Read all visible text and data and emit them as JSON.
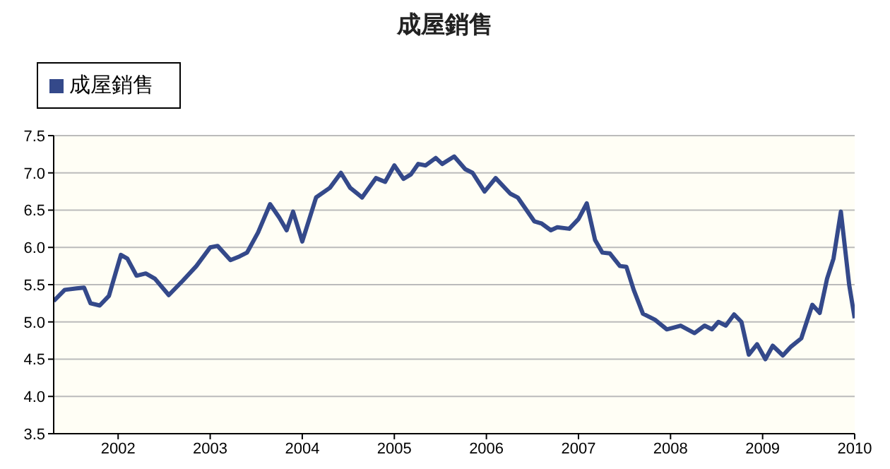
{
  "chart_data": {
    "type": "line",
    "title": "成屋銷售",
    "x": [
      2001.3,
      2001.42,
      2001.55,
      2001.63,
      2001.7,
      2001.8,
      2001.9,
      2002.03,
      2002.1,
      2002.2,
      2002.3,
      2002.4,
      2002.55,
      2002.7,
      2002.85,
      2003.0,
      2003.08,
      2003.22,
      2003.32,
      2003.4,
      2003.52,
      2003.65,
      2003.75,
      2003.83,
      2003.9,
      2004.0,
      2004.15,
      2004.3,
      2004.42,
      2004.52,
      2004.65,
      2004.8,
      2004.9,
      2005.0,
      2005.1,
      2005.18,
      2005.26,
      2005.34,
      2005.45,
      2005.52,
      2005.65,
      2005.77,
      2005.85,
      2005.98,
      2006.1,
      2006.26,
      2006.34,
      2006.52,
      2006.6,
      2006.7,
      2006.77,
      2006.9,
      2007.0,
      2007.09,
      2007.18,
      2007.26,
      2007.34,
      2007.45,
      2007.52,
      2007.6,
      2007.7,
      2007.83,
      2007.96,
      2008.11,
      2008.26,
      2008.37,
      2008.45,
      2008.52,
      2008.6,
      2008.69,
      2008.77,
      2008.85,
      2008.94,
      2009.03,
      2009.11,
      2009.22,
      2009.31,
      2009.42,
      2009.54,
      2009.62,
      2009.7,
      2009.77,
      2009.85,
      2009.94,
      2010.0
    ],
    "series": [
      {
        "name": "成屋銷售",
        "color": "#34498a",
        "values": [
          5.28,
          5.43,
          5.45,
          5.46,
          5.25,
          5.22,
          5.35,
          5.9,
          5.85,
          5.62,
          5.65,
          5.58,
          5.36,
          5.55,
          5.75,
          6.0,
          6.02,
          5.83,
          5.88,
          5.93,
          6.2,
          6.58,
          6.4,
          6.23,
          6.48,
          6.08,
          6.67,
          6.8,
          7.0,
          6.8,
          6.67,
          6.93,
          6.88,
          7.1,
          6.92,
          6.98,
          7.12,
          7.1,
          7.2,
          7.12,
          7.22,
          7.05,
          7.0,
          6.75,
          6.93,
          6.72,
          6.67,
          6.35,
          6.32,
          6.23,
          6.27,
          6.25,
          6.38,
          6.59,
          6.1,
          5.93,
          5.92,
          5.75,
          5.74,
          5.43,
          5.11,
          5.03,
          4.9,
          4.95,
          4.85,
          4.95,
          4.9,
          5.0,
          4.95,
          5.1,
          5.0,
          4.56,
          4.7,
          4.5,
          4.68,
          4.55,
          4.67,
          4.78,
          5.23,
          5.12,
          5.58,
          5.85,
          6.48,
          5.5,
          5.05
        ]
      }
    ],
    "xlim": [
      2001.3,
      2010.0
    ],
    "xticks": [
      2002,
      2003,
      2004,
      2005,
      2006,
      2007,
      2008,
      2009,
      2010
    ],
    "ylim": [
      3.5,
      7.5
    ],
    "yticks": [
      3.5,
      {
        "value": 4,
        "label": "4.0"
      },
      4.5,
      {
        "value": 5,
        "label": "5.0"
      },
      5.5,
      {
        "value": 6,
        "label": "6.0"
      },
      6.5,
      {
        "value": 7,
        "label": "7.0"
      },
      7.5
    ],
    "grid": "y",
    "legend": "top left",
    "marker": "none",
    "line_style": "solid"
  }
}
